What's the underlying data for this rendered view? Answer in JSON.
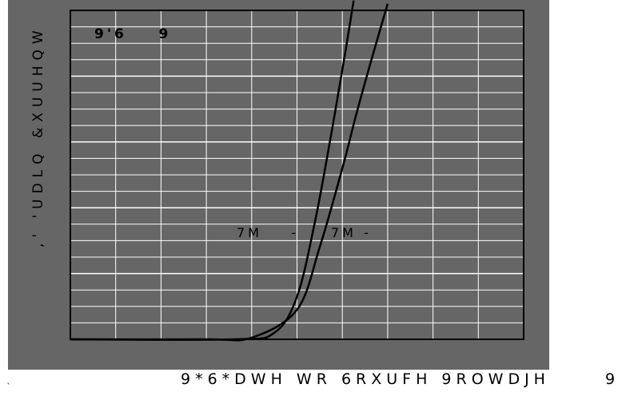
{
  "chart_data": {
    "type": "line",
    "title": "",
    "ylabel": ",' 'UDLQ &XUUHQW",
    "xlabel": "9*6*DWH WR 6RXUFH 9ROWDJH",
    "xlabel_end": "9",
    "corner_mark": "`",
    "grid": true,
    "x_divisions": 10,
    "y_divisions": 20,
    "annotations": [
      {
        "text": "9'6    9"
      },
      {
        "text": "7M    -"
      },
      {
        "text": "7M -"
      }
    ],
    "series": [
      {
        "values": [
          [
            0,
            0
          ],
          [
            3.0,
            0
          ],
          [
            4.0,
            0.005
          ],
          [
            5.0,
            0.09
          ],
          [
            5.5,
            0.28
          ],
          [
            6.0,
            0.52
          ],
          [
            6.3,
            0.68
          ],
          [
            6.6,
            0.83
          ],
          [
            7.0,
            1.02
          ]
        ]
      },
      {
        "values": [
          [
            0,
            0
          ],
          [
            3.6,
            0
          ],
          [
            4.5,
            0.02
          ],
          [
            5.0,
            0.13
          ],
          [
            5.4,
            0.36
          ],
          [
            5.75,
            0.62
          ],
          [
            6.05,
            0.86
          ],
          [
            6.25,
            1.03
          ]
        ]
      }
    ],
    "xlim": [
      0,
      10
    ],
    "ylim": [
      0,
      1
    ],
    "colors": {
      "panel": "#666666",
      "grid": "#ffffff",
      "curve": "#000000",
      "frame": "#000000"
    }
  }
}
